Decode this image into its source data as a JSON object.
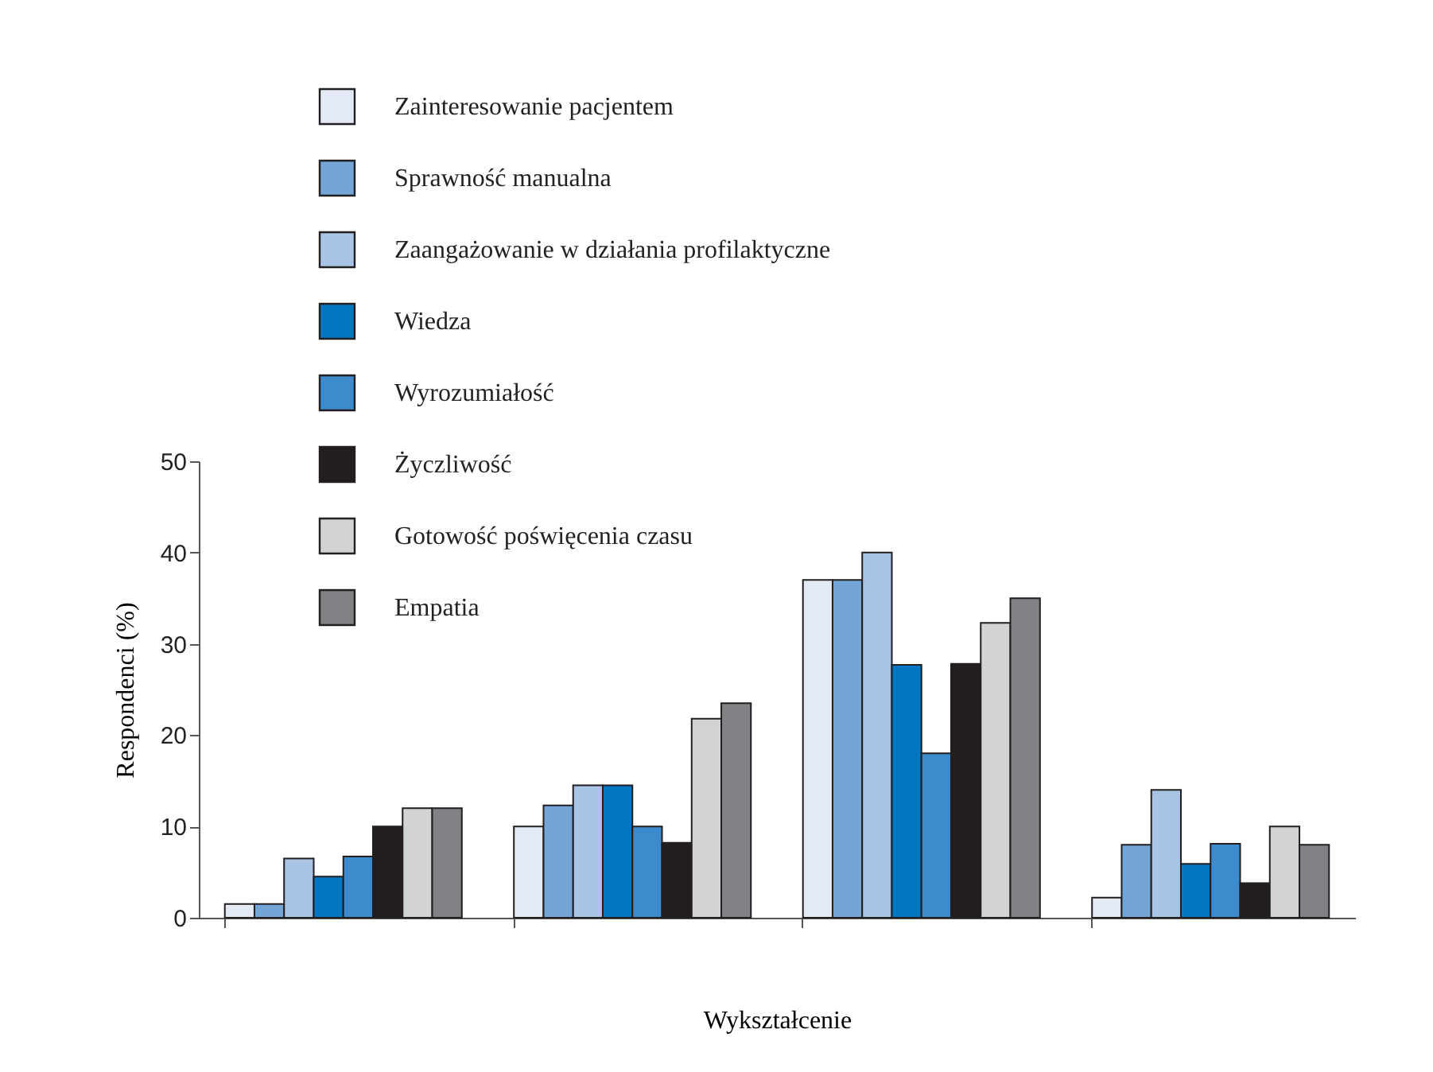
{
  "chart_data": {
    "type": "bar",
    "xlabel": "Wykształcenie",
    "ylabel": "Respondenci (%)",
    "categories": [
      null,
      null,
      null,
      null
    ],
    "series": [
      {
        "name": "Zainteresowanie pacjentem",
        "color": "#e3eaf6",
        "values": [
          1.5,
          10,
          37,
          2.2
        ]
      },
      {
        "name": "Sprawność manualna",
        "color": "#73a5d6",
        "values": [
          1.5,
          12.3,
          37,
          8
        ]
      },
      {
        "name": "Zaangażowanie w działania profilaktyczne",
        "color": "#a9c3e5",
        "values": [
          6.5,
          14.5,
          40,
          14
        ]
      },
      {
        "name": "Wiedza",
        "color": "#0077c0",
        "values": [
          4.5,
          14.5,
          27.7,
          5.9
        ]
      },
      {
        "name": "Wyrozumiałość",
        "color": "#3d8bcc",
        "values": [
          6.7,
          10,
          18,
          8.1
        ]
      },
      {
        "name": "Życzliwość",
        "color": "#231f20",
        "values": [
          10,
          8.2,
          27.8,
          3.8
        ]
      },
      {
        "name": "Gotowość poświęcenia czasu",
        "color": "#d1d3d4",
        "values": [
          12,
          21.8,
          32.3,
          10
        ]
      },
      {
        "name": "Empatia",
        "color": "#808285",
        "values": [
          12,
          23.5,
          35,
          8
        ]
      }
    ],
    "ylim": [
      0,
      50
    ],
    "yticks": [
      0,
      10,
      20,
      30,
      40,
      50
    ],
    "grid": false,
    "legend": "top left"
  }
}
